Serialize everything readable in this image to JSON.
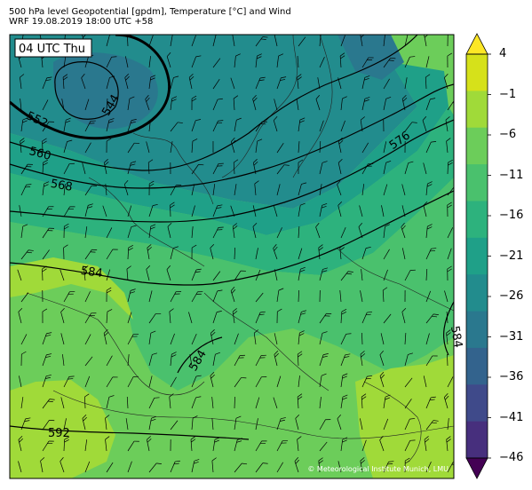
{
  "header": {
    "line1": "500 hPa level Geopotential [gpdm], Temperature [°C] and Wind",
    "line2": "WRF 19.08.2019 18:00 UTC +58"
  },
  "map": {
    "time_label": "04 UTC Thu",
    "copyright": "© Meteorological Institute Munich, LMU",
    "contour_labels": [
      "544",
      "552",
      "560",
      "568",
      "576",
      "584",
      "584",
      "584",
      "592"
    ]
  },
  "colorbar": {
    "ticks": [
      "4",
      "−1",
      "−6",
      "−11",
      "−16",
      "−21",
      "−26",
      "−31",
      "−36",
      "−41",
      "−46"
    ],
    "colors": [
      "#fde725",
      "#d6e11a",
      "#a0da39",
      "#6ccd5a",
      "#4ac16d",
      "#2db27d",
      "#1fa088",
      "#228c8d",
      "#2a788e",
      "#33638d",
      "#3f4a8a",
      "#472f7d",
      "#440154"
    ]
  },
  "field_colors": {
    "olive": "#a0da39",
    "light_green": "#6ccd5a",
    "green": "#4ac16d",
    "teal_green": "#2db27d",
    "teal": "#1fa088",
    "dark_teal": "#228c8d",
    "blue_teal": "#2a788e"
  }
}
